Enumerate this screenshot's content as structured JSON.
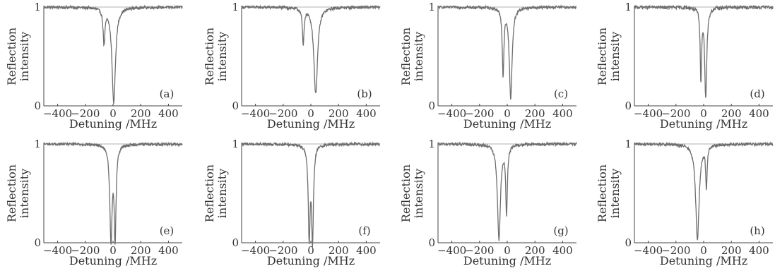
{
  "figure": {
    "line_color": "#6e6e6e",
    "axis_color": "#444444",
    "baseline_color": "#9a9a9a"
  },
  "chart_data": [
    {
      "type": "line",
      "panel_label": "(a)",
      "xlabel": "Detuning /MHz",
      "ylabel": "Reflection\nintensity",
      "xlim": [
        -500,
        500
      ],
      "ylim": [
        0,
        1
      ],
      "xticks": [
        -400,
        -200,
        0,
        200,
        400
      ],
      "yticks": [
        0,
        1
      ],
      "xtick_labels": [
        "−400",
        "−200",
        "0",
        "200",
        "400"
      ],
      "ytick_labels": [
        "0",
        "1"
      ],
      "baseline": 1,
      "noise": 0.015,
      "dips": [
        {
          "center": -65,
          "depth": 0.35,
          "width": 16
        },
        {
          "center": 5,
          "depth": 0.97,
          "width": 30
        }
      ]
    },
    {
      "type": "line",
      "panel_label": "(b)",
      "xlabel": "Detuning /MHz",
      "ylabel": "Reflection\nintensity",
      "xlim": [
        -500,
        500
      ],
      "ylim": [
        0,
        1
      ],
      "xticks": [
        -400,
        -200,
        0,
        200,
        400
      ],
      "yticks": [
        0,
        1
      ],
      "xtick_labels": [
        "−400",
        "−200",
        "0",
        "200",
        "400"
      ],
      "ytick_labels": [
        "0",
        "1"
      ],
      "baseline": 1,
      "noise": 0.015,
      "dips": [
        {
          "center": -55,
          "depth": 0.37,
          "width": 14
        },
        {
          "center": 35,
          "depth": 0.88,
          "width": 32
        }
      ]
    },
    {
      "type": "line",
      "panel_label": "(c)",
      "xlabel": "Detuning /MHz",
      "ylabel": "Reflection\nintensity",
      "xlim": [
        -500,
        500
      ],
      "ylim": [
        0,
        1
      ],
      "xticks": [
        -400,
        -200,
        0,
        200,
        400
      ],
      "yticks": [
        0,
        1
      ],
      "xtick_labels": [
        "−400",
        "−200",
        "0",
        "200",
        "400"
      ],
      "ytick_labels": [
        "0",
        "1"
      ],
      "baseline": 1,
      "noise": 0.015,
      "dips": [
        {
          "center": -30,
          "depth": 0.68,
          "width": 14
        },
        {
          "center": 25,
          "depth": 0.92,
          "width": 24
        }
      ]
    },
    {
      "type": "line",
      "panel_label": "(d)",
      "xlabel": "Detuning /MHz",
      "ylabel": "Reflection\nintensity",
      "xlim": [
        -500,
        500
      ],
      "ylim": [
        0,
        1
      ],
      "xticks": [
        -400,
        -200,
        0,
        200,
        400
      ],
      "yticks": [
        0,
        1
      ],
      "xtick_labels": [
        "−400",
        "−200",
        "0",
        "200",
        "400"
      ],
      "ytick_labels": [
        "0",
        "1"
      ],
      "baseline": 1,
      "noise": 0.02,
      "dips": [
        {
          "center": -20,
          "depth": 0.72,
          "width": 12
        },
        {
          "center": 15,
          "depth": 0.9,
          "width": 18
        }
      ]
    },
    {
      "type": "line",
      "panel_label": "(e)",
      "xlabel": "Detuning /MHz",
      "ylabel": "Reflection\nintensity",
      "xlim": [
        -500,
        500
      ],
      "ylim": [
        0,
        1
      ],
      "xticks": [
        -400,
        -200,
        0,
        200,
        400
      ],
      "yticks": [
        0,
        1
      ],
      "xtick_labels": [
        "−400",
        "−200",
        "0",
        "200",
        "400"
      ],
      "ytick_labels": [
        "0",
        "1"
      ],
      "baseline": 1,
      "noise": 0.015,
      "dips": [
        {
          "center": -15,
          "depth": 0.95,
          "width": 20
        },
        {
          "center": 15,
          "depth": 0.93,
          "width": 16
        }
      ]
    },
    {
      "type": "line",
      "panel_label": "(f)",
      "xlabel": "Detuning /MHz",
      "ylabel": "Reflection\nintensity",
      "xlim": [
        -500,
        500
      ],
      "ylim": [
        0,
        1
      ],
      "xticks": [
        -400,
        -200,
        0,
        200,
        400
      ],
      "yticks": [
        0,
        1
      ],
      "xtick_labels": [
        "−400",
        "−200",
        "0",
        "200",
        "400"
      ],
      "ytick_labels": [
        "0",
        "1"
      ],
      "baseline": 1,
      "noise": 0.015,
      "dips": [
        {
          "center": -12,
          "depth": 0.93,
          "width": 16
        },
        {
          "center": 12,
          "depth": 0.95,
          "width": 16
        }
      ]
    },
    {
      "type": "line",
      "panel_label": "(g)",
      "xlabel": "Detuning /MHz",
      "ylabel": "Reflection\nintensity",
      "xlim": [
        -500,
        500
      ],
      "ylim": [
        0,
        1
      ],
      "xticks": [
        -400,
        -200,
        0,
        200,
        400
      ],
      "yticks": [
        0,
        1
      ],
      "xtick_labels": [
        "−400",
        "−200",
        "0",
        "200",
        "400"
      ],
      "ytick_labels": [
        "0",
        "1"
      ],
      "baseline": 1,
      "noise": 0.015,
      "dips": [
        {
          "center": -60,
          "depth": 0.96,
          "width": 26
        },
        {
          "center": -5,
          "depth": 0.68,
          "width": 14
        }
      ]
    },
    {
      "type": "line",
      "panel_label": "(h)",
      "xlabel": "Detuning /MHz",
      "ylabel": "Reflection\nintensity",
      "xlim": [
        -500,
        500
      ],
      "ylim": [
        0,
        1
      ],
      "xticks": [
        -400,
        -200,
        0,
        200,
        400
      ],
      "yticks": [
        0,
        1
      ],
      "xtick_labels": [
        "−400",
        "−200",
        "0",
        "200",
        "400"
      ],
      "ytick_labels": [
        "0",
        "1"
      ],
      "baseline": 1,
      "noise": 0.015,
      "dips": [
        {
          "center": -45,
          "depth": 0.97,
          "width": 30
        },
        {
          "center": 20,
          "depth": 0.42,
          "width": 12
        }
      ]
    }
  ]
}
